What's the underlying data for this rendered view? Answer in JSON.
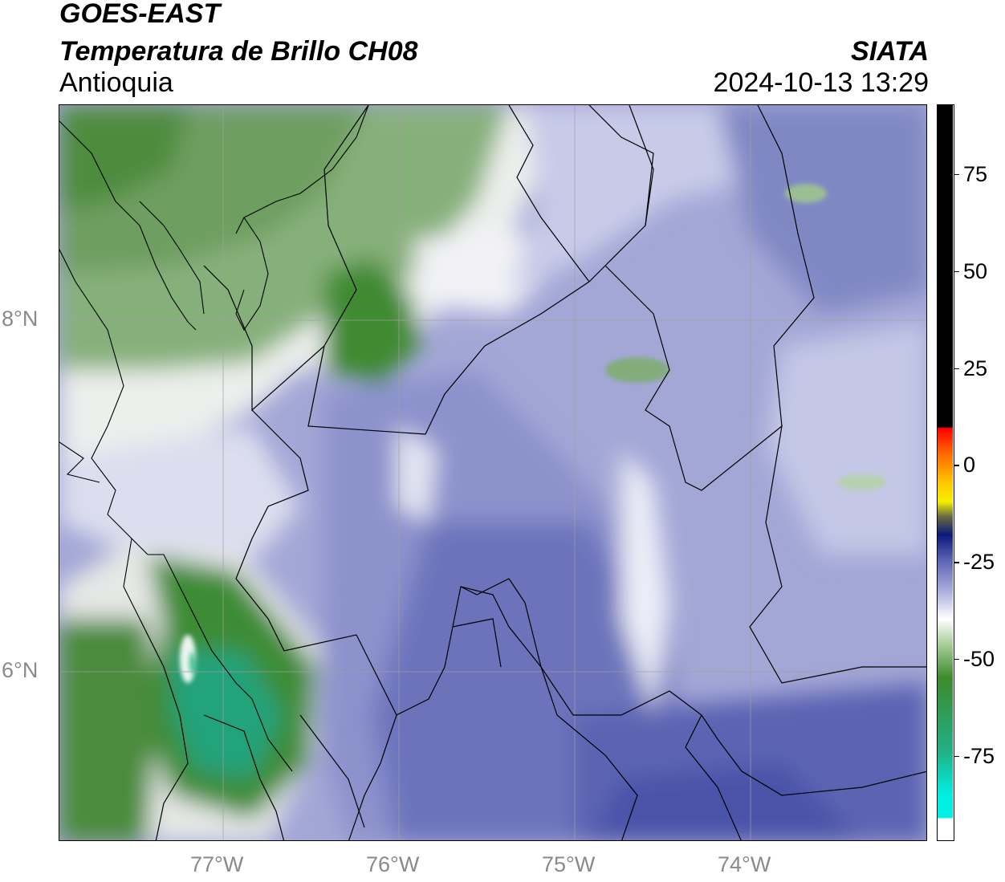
{
  "header": {
    "satellite": "GOES-EAST",
    "product": "Temperatura de Brillo CH08",
    "region": "Antioquia",
    "brand": "SIATA",
    "datetime": "2024-10-13 13:29"
  },
  "map": {
    "lon_range": [
      -77.94,
      -73.1
    ],
    "lat_range": [
      4.9,
      9.1
    ],
    "grid": true,
    "lon_ticks": [
      {
        "value": -77,
        "label": "77°W"
      },
      {
        "value": -76,
        "label": "76°W"
      },
      {
        "value": -75,
        "label": "75°W"
      },
      {
        "value": -74,
        "label": "74°W"
      }
    ],
    "lat_ticks": [
      {
        "value": 8,
        "label": "8°N"
      },
      {
        "value": 6,
        "label": "6°N"
      }
    ]
  },
  "colorbar": {
    "range": [
      -97,
      93
    ],
    "ticks": [
      {
        "value": 75,
        "label": "75"
      },
      {
        "value": 50,
        "label": "50"
      },
      {
        "value": 25,
        "label": "25"
      },
      {
        "value": 0,
        "label": "0"
      },
      {
        "value": -25,
        "label": "-25"
      },
      {
        "value": -50,
        "label": "-50"
      },
      {
        "value": -75,
        "label": "-75"
      }
    ],
    "colors": {
      "black": "#000000",
      "red": "#ff1a00",
      "orange": "#ff8c00",
      "yellow": "#f5f000",
      "navy": "#0a1a7a",
      "blue": "#6068b8",
      "lavender": "#c8cae8",
      "white": "#ffffff",
      "green": "#3c8c2c",
      "teal": "#22c8a0",
      "cyan": "#00f0e8"
    }
  }
}
